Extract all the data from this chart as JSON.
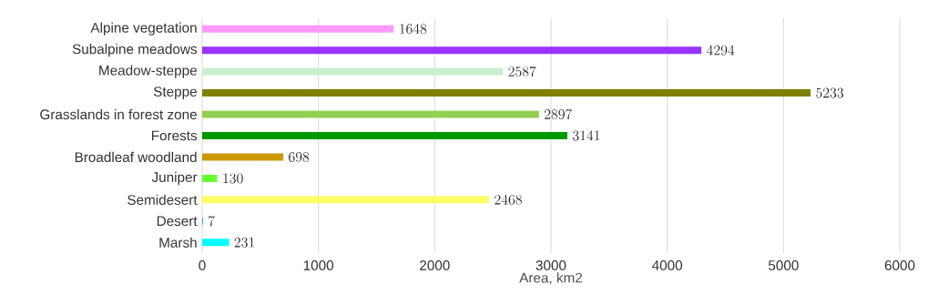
{
  "chart_data": {
    "type": "bar",
    "orientation": "horizontal",
    "xlabel": "Area, km2",
    "categories": [
      "Alpine vegetation",
      "Subalpine meadows",
      "Meadow-steppe",
      "Steppe",
      "Grasslands in forest zone",
      "Forests",
      "Broadleaf woodland",
      "Juniper",
      "Semidesert",
      "Desert",
      "Marsh"
    ],
    "values": [
      1648,
      4294,
      2587,
      5233,
      2897,
      3141,
      698,
      130,
      2468,
      7,
      231
    ],
    "colors": [
      "#ff99ff",
      "#9933ff",
      "#c6efce",
      "#808000",
      "#92d050",
      "#009900",
      "#cc9900",
      "#66ff33",
      "#ffff66",
      "#00b0f0",
      "#00ffff"
    ],
    "xlim": [
      0,
      6000
    ],
    "xticks": [
      0,
      1000,
      2000,
      3000,
      4000,
      5000,
      6000
    ],
    "grid": "x",
    "data_labels": true
  }
}
